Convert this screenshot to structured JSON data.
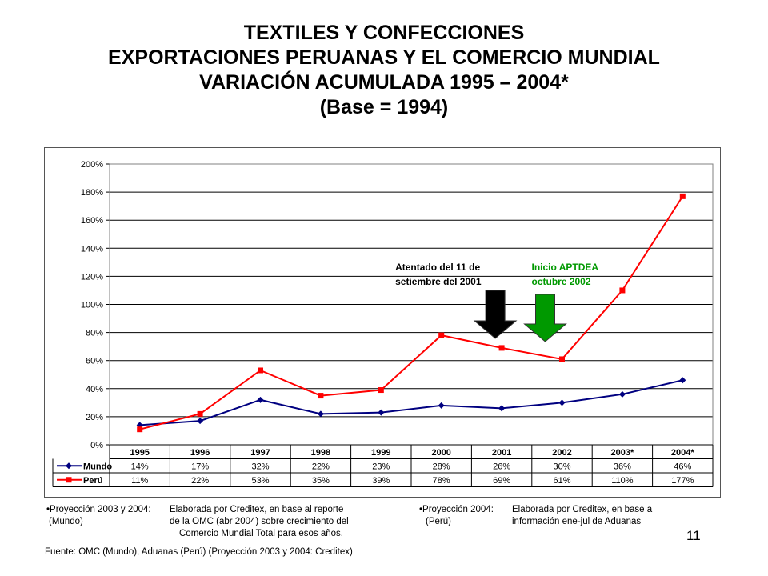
{
  "title": {
    "line1": "TEXTILES Y CONFECCIONES",
    "line2": "EXPORTACIONES PERUANAS Y EL COMERCIO MUNDIAL",
    "line3": "VARIACIÓN ACUMULADA 1995 – 2004*",
    "line4": "(Base = 1994)"
  },
  "chart_data": {
    "type": "line",
    "categories": [
      "1995",
      "1996",
      "1997",
      "1998",
      "1999",
      "2000",
      "2001",
      "2002",
      "2003*",
      "2004*"
    ],
    "series": [
      {
        "name": "Mundo",
        "color": "#000080",
        "marker": "diamond",
        "values": [
          14,
          17,
          32,
          22,
          23,
          28,
          26,
          30,
          36,
          46
        ],
        "labels": [
          "14%",
          "17%",
          "32%",
          "22%",
          "23%",
          "28%",
          "26%",
          "30%",
          "36%",
          "46%"
        ]
      },
      {
        "name": "Perú",
        "color": "#ff0000",
        "marker": "square",
        "values": [
          11,
          22,
          53,
          35,
          39,
          78,
          69,
          61,
          110,
          177
        ],
        "labels": [
          "11%",
          "22%",
          "53%",
          "35%",
          "39%",
          "78%",
          "69%",
          "61%",
          "110%",
          "177%"
        ]
      }
    ],
    "ylim": [
      0,
      200
    ],
    "yticks": [
      "0%",
      "20%",
      "40%",
      "60%",
      "80%",
      "100%",
      "120%",
      "140%",
      "160%",
      "180%",
      "200%"
    ],
    "grid": true,
    "data_table": true,
    "annotations": [
      {
        "line1": "Atentado del 11 de",
        "line2": "setiembre del 2001",
        "color": "#000000",
        "near": "2001"
      },
      {
        "line1": "Inicio APTDEA",
        "line2": "octubre 2002",
        "color": "#009900",
        "near": "2002"
      }
    ]
  },
  "notes": {
    "left": {
      "line1_a": "•Proyección 2003 y 2004:",
      "line1_b": "Elaborada por Creditex, en base al reporte",
      "line2_a": "(Mundo)",
      "line2_b": "de la OMC (abr 2004) sobre crecimiento del",
      "line3_b": "Comercio Mundial Total para esos años."
    },
    "right": {
      "line1_a": "•Proyección 2004:",
      "line1_b": "Elaborada por Creditex, en base a",
      "line2_a": "(Perú)",
      "line2_b": "información ene-jul de Aduanas"
    }
  },
  "source": "Fuente: OMC (Mundo), Aduanas (Perú) (Proyección 2003 y 2004: Creditex)",
  "page_number": "11"
}
